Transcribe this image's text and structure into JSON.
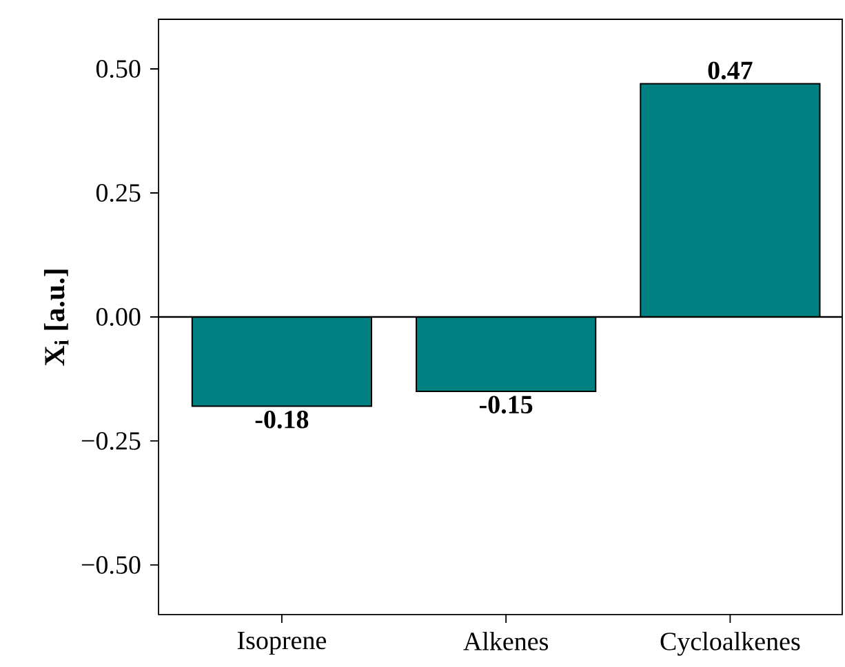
{
  "chart_data": {
    "type": "bar",
    "ylabel": "X$_{i}$ [a.u.]",
    "categories": [
      "Isoprene",
      "Alkenes",
      "Cycloalkenes"
    ],
    "values": [
      -0.18,
      -0.15,
      0.47
    ],
    "color": "#008080",
    "data_labels": true,
    "ylim": [
      -0.6,
      0.6
    ],
    "yticks": [
      {
        "value": -0.5,
        "label": "−0.50"
      },
      {
        "value": -0.25,
        "label": "−0.25"
      },
      {
        "value": 0,
        "label": "0.00"
      },
      {
        "value": 0.25,
        "label": "0.25"
      },
      {
        "value": 0.5,
        "label": "0.50"
      }
    ],
    "ref_lines": [
      {
        "axis": "y",
        "value": 0,
        "color": "#000000"
      }
    ],
    "grid": false
  }
}
